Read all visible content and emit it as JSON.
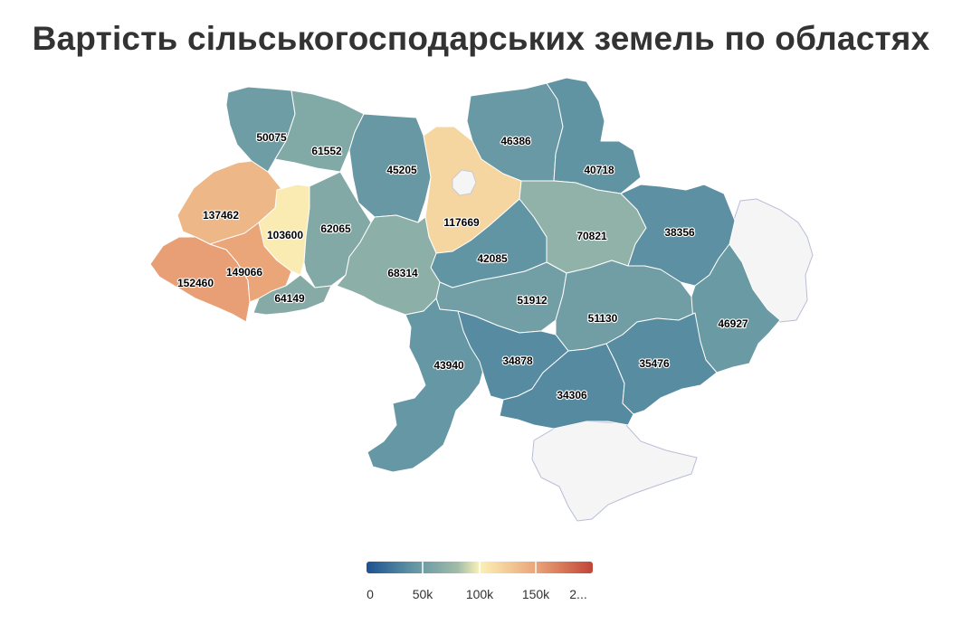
{
  "title": "Вартість сільськогосподарських земель по областях",
  "colors": {
    "scale": [
      "#1d5291",
      "#5f93a3",
      "#9fbba9",
      "#fbf1b6",
      "#eaa478",
      "#c24436"
    ],
    "no_data": "#f5f5f6"
  },
  "legend": {
    "min": 0,
    "max": 200000,
    "ticks": [
      "0",
      "50k",
      "100k",
      "150k",
      "2..."
    ]
  },
  "chart_data": {
    "type": "choropleth",
    "regions": [
      {
        "id": "volyn",
        "value": 50075
      },
      {
        "id": "rivne",
        "value": 61552
      },
      {
        "id": "zhytomyr",
        "value": 45205
      },
      {
        "id": "kyiv-oblast",
        "value": 117669
      },
      {
        "id": "chernihiv",
        "value": 46386
      },
      {
        "id": "sumy",
        "value": 40718
      },
      {
        "id": "lviv",
        "value": 137462
      },
      {
        "id": "ternopil",
        "value": 103600
      },
      {
        "id": "khmelnytskyi",
        "value": 62065
      },
      {
        "id": "cherkasy",
        "value": 42085
      },
      {
        "id": "poltava",
        "value": 70821
      },
      {
        "id": "kharkiv",
        "value": 38356
      },
      {
        "id": "zakarpattia",
        "value": 152460
      },
      {
        "id": "ivano-frankivsk",
        "value": 149066
      },
      {
        "id": "chernivtsi",
        "value": 64149
      },
      {
        "id": "vinnytsia",
        "value": 68314
      },
      {
        "id": "kirovohrad",
        "value": 51912
      },
      {
        "id": "dnipropetrovsk",
        "value": 51130
      },
      {
        "id": "donetsk",
        "value": 46927
      },
      {
        "id": "odesa",
        "value": 43940
      },
      {
        "id": "mykolaiv",
        "value": 34878
      },
      {
        "id": "kherson",
        "value": 34306
      },
      {
        "id": "zaporizhzhia",
        "value": 35476
      }
    ]
  }
}
